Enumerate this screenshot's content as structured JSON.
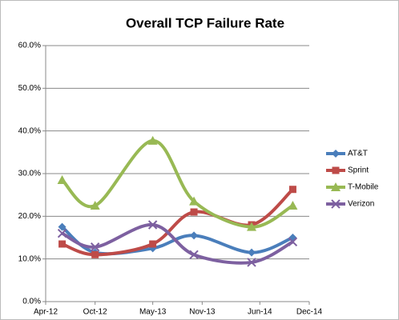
{
  "chart_data": {
    "type": "line",
    "title": "Overall TCP Failure Rate",
    "x": [
      "2012-06",
      "2012-10",
      "2013-05",
      "2013-10",
      "2014-05",
      "2014-10"
    ],
    "series": [
      {
        "name": "AT&T",
        "color": "#4a7ebb",
        "marker": "diamond",
        "values": [
          17.5,
          11.5,
          12.5,
          15.5,
          11.5,
          15.0
        ]
      },
      {
        "name": "Sprint",
        "color": "#be4b48",
        "marker": "square",
        "values": [
          13.5,
          11.0,
          13.5,
          21.0,
          18.0,
          26.3
        ]
      },
      {
        "name": "T-Mobile",
        "color": "#98b954",
        "marker": "triangle",
        "values": [
          28.5,
          22.5,
          37.7,
          23.5,
          17.5,
          22.5
        ]
      },
      {
        "name": "Verizon",
        "color": "#7d60a0",
        "marker": "x",
        "values": [
          16.0,
          12.8,
          18.0,
          11.0,
          9.2,
          14.0
        ]
      }
    ],
    "xlim": [
      "2012-04",
      "2014-12"
    ],
    "xticks": [
      {
        "value": "2012-04",
        "label": "Apr-12"
      },
      {
        "value": "2012-10",
        "label": "Oct-12"
      },
      {
        "value": "2013-05",
        "label": "May-13"
      },
      {
        "value": "2013-11",
        "label": "Nov-13"
      },
      {
        "value": "2014-06",
        "label": "Jun-14"
      },
      {
        "value": "2014-12",
        "label": "Dec-14"
      }
    ],
    "ylim": [
      0,
      60
    ],
    "yticks": [
      {
        "value": 0,
        "label": "0.0%"
      },
      {
        "value": 10,
        "label": "10.0%"
      },
      {
        "value": 20,
        "label": "20.0%"
      },
      {
        "value": 30,
        "label": "30.0%"
      },
      {
        "value": 40,
        "label": "40.0%"
      },
      {
        "value": 50,
        "label": "50.0%"
      },
      {
        "value": 60,
        "label": "60.0%"
      }
    ],
    "grid": true,
    "smooth": true,
    "legend": "right"
  }
}
